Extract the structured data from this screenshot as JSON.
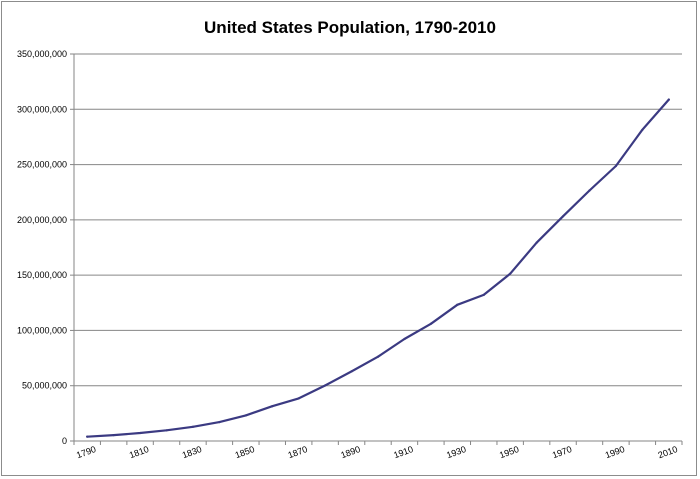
{
  "chart_data": {
    "type": "line",
    "title": "United States Population, 1790-2010",
    "xlabel": "",
    "ylabel": "",
    "x": [
      1790,
      1800,
      1810,
      1820,
      1830,
      1840,
      1850,
      1860,
      1870,
      1880,
      1890,
      1900,
      1910,
      1920,
      1930,
      1940,
      1950,
      1960,
      1970,
      1980,
      1990,
      2000,
      2010
    ],
    "series": [
      {
        "values": [
          3929214,
          5308483,
          7239881,
          9638453,
          12866020,
          17069453,
          23191876,
          31443321,
          38558371,
          50189209,
          62979766,
          76212168,
          92228496,
          106021537,
          123202624,
          132164569,
          151325798,
          179323175,
          203211926,
          226545805,
          248709873,
          281421906,
          308745538
        ]
      }
    ],
    "x_tick_labels": [
      "1790",
      "1810",
      "1830",
      "1850",
      "1870",
      "1890",
      "1910",
      "1930",
      "1950",
      "1970",
      "1990",
      "2010"
    ],
    "y_tick_labels": [
      "0",
      "50,000,000",
      "100,000,000",
      "150,000,000",
      "200,000,000",
      "250,000,000",
      "300,000,000",
      "350,000,000"
    ],
    "ylim": [
      0,
      350000000
    ],
    "xlim": [
      1790,
      2010
    ],
    "grid": "horizontal",
    "legend": "none",
    "colors": {
      "line": "#3b3a82",
      "grid": "#868686",
      "axis": "#868686"
    }
  }
}
